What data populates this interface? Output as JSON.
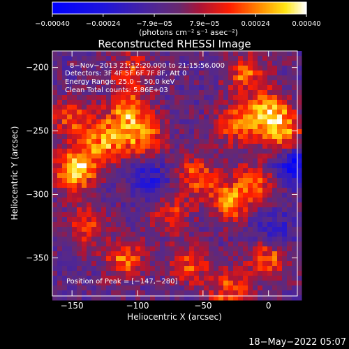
{
  "chart_data": {
    "type": "heatmap",
    "title": "Reconstructed RHESSI Image",
    "xlabel": "Heliocentric X (arcsec)",
    "ylabel": "Heliocentric Y (arcsec)",
    "xlim": [
      -165,
      22
    ],
    "ylim": [
      -380,
      -187
    ],
    "x_ticks": [
      -150,
      -100,
      -50,
      0
    ],
    "y_ticks": [
      -200,
      -250,
      -300,
      -350
    ],
    "x_tick_labels": [
      "−150",
      "−100",
      "−50",
      "0"
    ],
    "y_tick_labels": [
      "−200",
      "−250",
      "−300",
      "−350"
    ],
    "colorbar": {
      "range": [
        -0.0004,
        0.0004
      ],
      "tick_values": [
        -0.0004,
        -0.00024,
        -7.9e-05,
        7.9e-05,
        0.00024,
        0.0004
      ],
      "tick_labels": [
        "−0.00040",
        "−0.00024",
        "−7.9e−05",
        "7.9e−05",
        "0.00024",
        "0.00040"
      ],
      "unit_label": "(photons cm⁻² s⁻¹ asec⁻²)"
    },
    "info": [
      "8−Nov−2013 21:12:20.000 to 21:15:56.000",
      "Detectors: 3F 4F 5F 6F 7F 8F, Att 0",
      "Energy Range: 25.0 − 50.0 keV",
      "Clean     Total counts: 5.86E+03"
    ],
    "peak_text": "Position of Peak = [−147,−280]",
    "peak": [
      -147,
      -280
    ],
    "hot_spots": [
      {
        "x": -147,
        "y": -280,
        "v": 0.0004
      },
      {
        "x": -125,
        "y": -258,
        "v": 0.00032
      },
      {
        "x": -108,
        "y": -235,
        "v": 0.0003
      },
      {
        "x": -95,
        "y": -255,
        "v": 0.00028
      },
      {
        "x": -150,
        "y": -240,
        "v": 0.00022
      },
      {
        "x": -55,
        "y": -285,
        "v": 0.00024
      },
      {
        "x": -30,
        "y": -305,
        "v": 0.00028
      },
      {
        "x": -10,
        "y": -290,
        "v": 0.00022
      },
      {
        "x": 0,
        "y": -235,
        "v": 0.00038
      },
      {
        "x": 12,
        "y": -255,
        "v": 0.0003
      },
      {
        "x": -18,
        "y": -205,
        "v": 0.00024
      },
      {
        "x": -25,
        "y": -245,
        "v": 0.00026
      },
      {
        "x": -110,
        "y": -350,
        "v": 0.00024
      },
      {
        "x": -60,
        "y": -355,
        "v": 0.00022
      },
      {
        "x": 0,
        "y": -350,
        "v": 0.00026
      },
      {
        "x": -140,
        "y": -325,
        "v": 0.0002
      },
      {
        "x": -75,
        "y": -315,
        "v": 0.0002
      },
      {
        "x": -30,
        "y": -375,
        "v": 0.00024
      },
      {
        "x": -105,
        "y": -203,
        "v": 0.0002
      }
    ],
    "cold_spots": [
      {
        "x": 18,
        "y": -275,
        "v": -0.0003
      },
      {
        "x": -90,
        "y": -290,
        "v": -0.00018
      },
      {
        "x": 5,
        "y": -330,
        "v": -0.00016
      }
    ]
  },
  "footer": {
    "date": "18−May−2022 05:07"
  }
}
